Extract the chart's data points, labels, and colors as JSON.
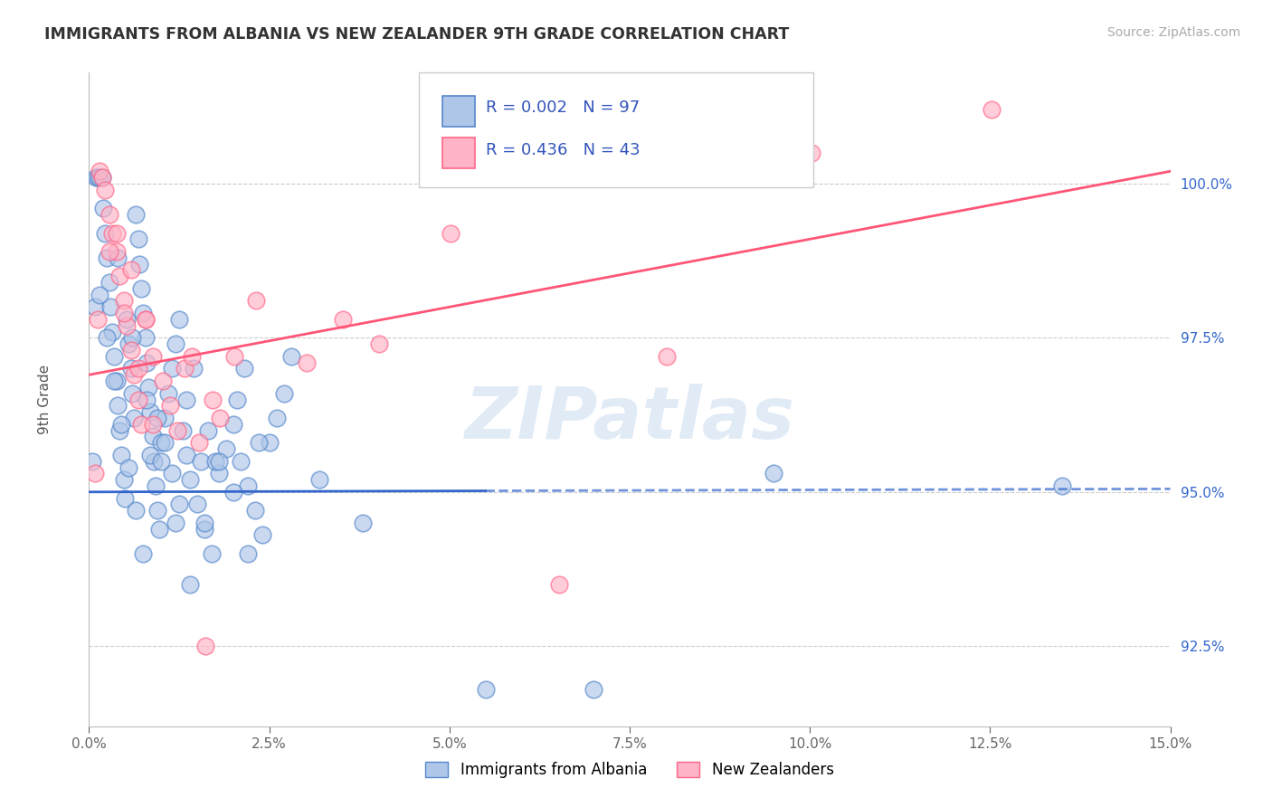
{
  "title": "IMMIGRANTS FROM ALBANIA VS NEW ZEALANDER 9TH GRADE CORRELATION CHART",
  "source": "Source: ZipAtlas.com",
  "ylabel": "9th Grade",
  "y_ticks": [
    92.5,
    95.0,
    97.5,
    100.0
  ],
  "y_tick_labels": [
    "92.5%",
    "95.0%",
    "97.5%",
    "100.0%"
  ],
  "x_ticks": [
    0.0,
    2.5,
    5.0,
    7.5,
    10.0,
    12.5,
    15.0
  ],
  "x_tick_labels": [
    "0.0%",
    "2.5%",
    "5.0%",
    "7.5%",
    "10.0%",
    "12.5%",
    "15.0%"
  ],
  "xlim": [
    0.0,
    15.0
  ],
  "ylim": [
    91.2,
    101.8
  ],
  "legend_entry1": "Immigrants from Albania",
  "legend_entry2": "New Zealanders",
  "r_albania": 0.002,
  "n_albania": 97,
  "r_newzealand": 0.436,
  "n_newzealand": 43,
  "color_albania_face": "#aec6e8",
  "color_albania_edge": "#5588cc",
  "color_newzealand_face": "#ffb3c6",
  "color_newzealand_edge": "#ff6688",
  "color_albania_line": "#3366cc",
  "color_newzealand_line": "#ff5577",
  "watermark": "ZIPatlas",
  "albania_trend_y0": 95.0,
  "albania_trend_y1": 95.05,
  "nz_trend_y0": 96.9,
  "nz_trend_y1": 100.2,
  "albania_x": [
    0.05,
    0.08,
    0.1,
    0.12,
    0.15,
    0.18,
    0.2,
    0.22,
    0.25,
    0.28,
    0.3,
    0.32,
    0.35,
    0.38,
    0.4,
    0.42,
    0.45,
    0.48,
    0.5,
    0.52,
    0.55,
    0.58,
    0.6,
    0.62,
    0.65,
    0.68,
    0.7,
    0.72,
    0.75,
    0.78,
    0.8,
    0.82,
    0.85,
    0.88,
    0.9,
    0.92,
    0.95,
    0.98,
    1.0,
    1.05,
    1.1,
    1.15,
    1.2,
    1.25,
    1.3,
    1.35,
    1.4,
    1.5,
    1.6,
    1.7,
    1.8,
    1.9,
    2.0,
    2.1,
    2.2,
    2.3,
    2.4,
    2.5,
    2.6,
    2.7,
    0.15,
    0.25,
    0.35,
    0.45,
    0.55,
    0.65,
    0.75,
    0.85,
    0.95,
    1.05,
    1.15,
    1.25,
    1.35,
    1.45,
    1.55,
    1.65,
    1.75,
    2.05,
    2.15,
    2.35,
    0.4,
    0.6,
    0.8,
    1.0,
    1.2,
    1.4,
    1.6,
    1.8,
    2.0,
    2.2,
    2.8,
    3.2,
    3.8,
    5.5,
    7.0,
    9.5,
    13.5
  ],
  "albania_y": [
    95.5,
    98.0,
    100.1,
    100.1,
    100.1,
    100.1,
    99.6,
    99.2,
    98.8,
    98.4,
    98.0,
    97.6,
    97.2,
    96.8,
    96.4,
    96.0,
    95.6,
    95.2,
    94.9,
    97.8,
    97.4,
    97.0,
    96.6,
    96.2,
    99.5,
    99.1,
    98.7,
    98.3,
    97.9,
    97.5,
    97.1,
    96.7,
    96.3,
    95.9,
    95.5,
    95.1,
    94.7,
    94.4,
    95.8,
    96.2,
    96.6,
    97.0,
    97.4,
    97.8,
    96.0,
    95.6,
    95.2,
    94.8,
    94.4,
    94.0,
    95.3,
    95.7,
    96.1,
    95.5,
    95.1,
    94.7,
    94.3,
    95.8,
    96.2,
    96.6,
    98.2,
    97.5,
    96.8,
    96.1,
    95.4,
    94.7,
    94.0,
    95.6,
    96.2,
    95.8,
    95.3,
    94.8,
    96.5,
    97.0,
    95.5,
    96.0,
    95.5,
    96.5,
    97.0,
    95.8,
    98.8,
    97.5,
    96.5,
    95.5,
    94.5,
    93.5,
    94.5,
    95.5,
    95.0,
    94.0,
    97.2,
    95.2,
    94.5,
    91.8,
    91.8,
    95.3,
    95.1
  ],
  "newzealand_x": [
    0.08,
    0.12,
    0.15,
    0.18,
    0.22,
    0.28,
    0.32,
    0.38,
    0.42,
    0.48,
    0.52,
    0.58,
    0.62,
    0.68,
    0.72,
    0.78,
    0.88,
    1.02,
    1.12,
    1.22,
    1.32,
    1.52,
    1.72,
    2.02,
    2.32,
    3.02,
    3.52,
    4.02,
    5.02,
    6.52,
    8.02,
    10.02,
    12.52,
    0.38,
    0.58,
    0.78,
    1.42,
    1.82,
    0.28,
    0.48,
    0.68,
    0.88,
    1.62
  ],
  "newzealand_y": [
    95.3,
    97.8,
    100.2,
    100.1,
    99.9,
    99.5,
    99.2,
    98.9,
    98.5,
    98.1,
    97.7,
    97.3,
    96.9,
    96.5,
    96.1,
    97.8,
    97.2,
    96.8,
    96.4,
    96.0,
    97.0,
    95.8,
    96.5,
    97.2,
    98.1,
    97.1,
    97.8,
    97.4,
    99.2,
    93.5,
    97.2,
    100.5,
    101.2,
    99.2,
    98.6,
    97.8,
    97.2,
    96.2,
    98.9,
    97.9,
    97.0,
    96.1,
    92.5
  ]
}
